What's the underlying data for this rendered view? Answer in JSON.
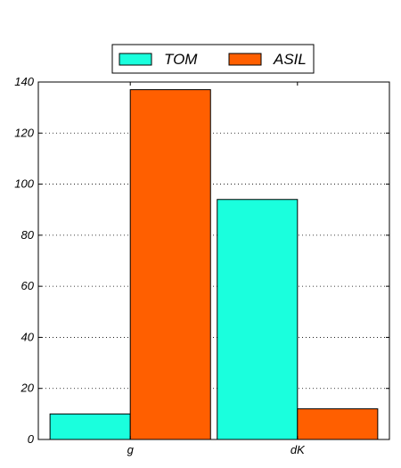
{
  "chart_data": {
    "type": "bar",
    "title": "",
    "xlabel": "",
    "ylabel": "",
    "categories": [
      "g",
      "dK"
    ],
    "series": [
      {
        "name": "TOM",
        "values": [
          10,
          94
        ],
        "color": "#1affdd"
      },
      {
        "name": "ASIL",
        "values": [
          137,
          12
        ],
        "color": "#ff5f00"
      }
    ],
    "ylim": [
      0,
      140
    ],
    "yticks": [
      0,
      20,
      40,
      60,
      80,
      100,
      120,
      140
    ],
    "grid": true,
    "legend_position": "top-center"
  }
}
